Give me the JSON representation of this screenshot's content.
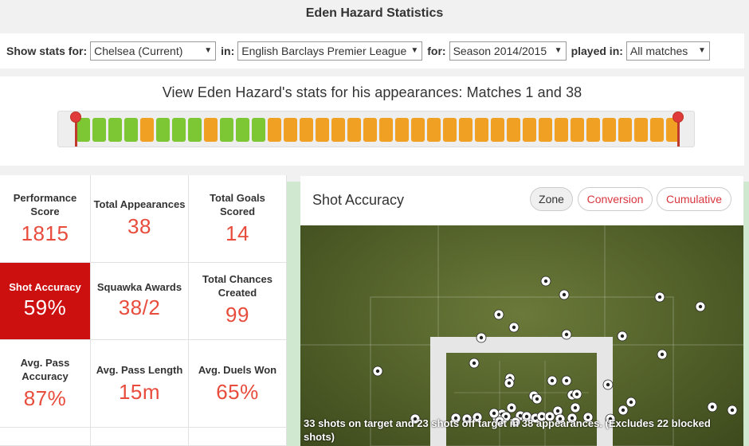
{
  "page_title": "Eden Hazard Statistics",
  "filters": {
    "show_stats_label": "Show stats for:",
    "team_value": "Chelsea (Current)",
    "in_label": "in:",
    "league_value": "English Barclays Premier League",
    "for_label": "for:",
    "season_value": "Season 2014/2015",
    "played_in_label": "played in:",
    "matches_value": "All matches"
  },
  "range": {
    "heading": "View Eden Hazard's stats for his appearances: Matches 1 and 38",
    "match_colors": [
      "#7dc734",
      "#7dc734",
      "#7dc734",
      "#7dc734",
      "#f0a022",
      "#7dc734",
      "#7dc734",
      "#7dc734",
      "#f0a022",
      "#7dc734",
      "#7dc734",
      "#7dc734",
      "#f0a022",
      "#f0a022",
      "#f0a022",
      "#f0a022",
      "#f0a022",
      "#f0a022",
      "#f0a022",
      "#f0a022",
      "#f0a022",
      "#f0a022",
      "#f0a022",
      "#f0a022",
      "#f0a022",
      "#f0a022",
      "#f0a022",
      "#f0a022",
      "#f0a022",
      "#f0a022",
      "#f0a022",
      "#f0a022",
      "#f0a022",
      "#f0a022",
      "#f0a022",
      "#f0a022",
      "#f0a022",
      "#f0a022"
    ]
  },
  "stats": [
    {
      "label": "Performance Score",
      "value": "1815"
    },
    {
      "label": "Total Appearances",
      "value": "38"
    },
    {
      "label": "Total Goals Scored",
      "value": "14"
    },
    {
      "label": "Shot Accuracy",
      "value": "59%"
    },
    {
      "label": "Squawka Awards",
      "value": "38/2"
    },
    {
      "label": "Total Chances Created",
      "value": "99"
    },
    {
      "label": "Avg. Pass Accuracy",
      "value": "87%"
    },
    {
      "label": "Avg. Pass Length",
      "value": "15m"
    },
    {
      "label": "Avg. Duels Won",
      "value": "65%"
    }
  ],
  "shot_panel": {
    "title": "Shot Accuracy",
    "buttons": {
      "zone": "Zone",
      "conversion": "Conversion",
      "cumulative": "Cumulative"
    },
    "caption": "33 shots on target and 23 shots off target in 38 appearances. (Excludes 22 blocked shots)"
  },
  "colors": {
    "accent_red": "#e74c3c",
    "active_red": "#cc1010",
    "green": "#7dc734",
    "orange": "#f0a022"
  }
}
